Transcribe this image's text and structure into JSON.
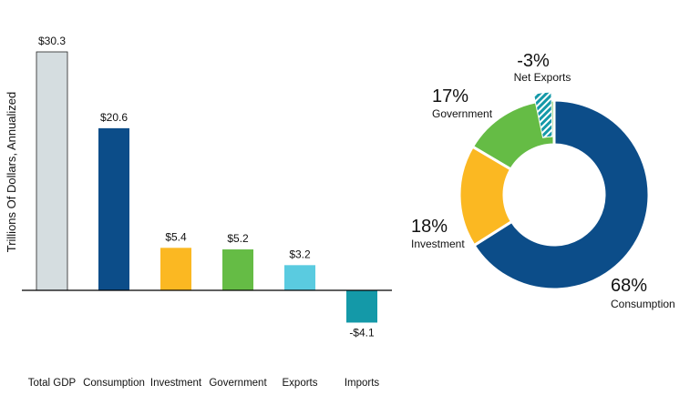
{
  "chart_data": [
    {
      "type": "bar",
      "ylabel": "Trillions Of Dollars, Annualized",
      "categories": [
        "Total GDP",
        "Consumption",
        "Investment",
        "Government",
        "Exports",
        "Imports"
      ],
      "values": [
        30.3,
        20.6,
        5.4,
        5.2,
        3.2,
        -4.1
      ],
      "value_labels": [
        "$30.3",
        "$20.6",
        "$5.4",
        "$5.2",
        "$3.2",
        "-$4.1"
      ],
      "colors": [
        "#D5DDE0",
        "#0C4D89",
        "#FBB822",
        "#65BC45",
        "#5ACBE0",
        "#1499A8"
      ],
      "ylim": [
        -4.1,
        30.3
      ],
      "grid": false
    },
    {
      "type": "pie",
      "style": "donut",
      "slices": [
        {
          "name": "Consumption",
          "value": 68,
          "label": "68%",
          "color": "#0C4D89"
        },
        {
          "name": "Investment",
          "value": 18,
          "label": "18%",
          "color": "#FBB822"
        },
        {
          "name": "Government",
          "value": 17,
          "label": "17%",
          "color": "#65BC45"
        },
        {
          "name": "Net Exports",
          "value": -3,
          "label": "-3%",
          "color": "#1499A8",
          "pattern": "hatched"
        }
      ]
    }
  ]
}
